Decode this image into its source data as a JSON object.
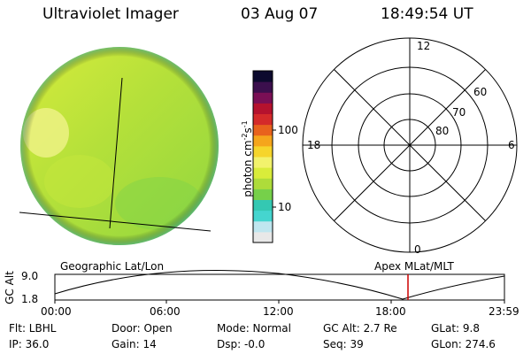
{
  "header": {
    "instrument": "Ultraviolet Imager",
    "date": "03 Aug 07",
    "time": "18:49:54 UT"
  },
  "colorbar": {
    "label": "photon cm^-2 s^-1",
    "ticks": [
      "100",
      "10"
    ],
    "scale": "log",
    "colors": [
      "#e8e8e8",
      "#bfe6ef",
      "#45d5cf",
      "#34c8b2",
      "#76d04a",
      "#aedc3a",
      "#d9ec3a",
      "#f2f26c",
      "#f6d52b",
      "#f5a51c",
      "#e8621d",
      "#d42a2a",
      "#b5122e",
      "#7a0f55",
      "#3b0f4d",
      "#0c0a2e"
    ]
  },
  "polar_plot": {
    "clock_labels": [
      "12",
      "18",
      "6",
      "0"
    ],
    "lat_labels": [
      "60",
      "70",
      "80"
    ]
  },
  "panels": {
    "left_caption": "Geographic Lat/Lon",
    "right_caption": "Apex MLat/MLT"
  },
  "altitude_plot": {
    "axis_label": "GC Alt",
    "y_ticks": [
      "9.0",
      "1.8"
    ],
    "x_ticks": [
      "00:00",
      "06:00",
      "12:00",
      "18:00",
      "23:59"
    ],
    "current_time_marker": "18:50",
    "marker_color": "#cc0000"
  },
  "info": {
    "flt": "Flt: LBHL",
    "door": "Door: Open",
    "mode": "Mode: Normal",
    "gc_alt": "GC Alt: 2.7 Re",
    "glat": "GLat:  9.8",
    "ip": "IP: 36.0",
    "gain": "Gain: 14",
    "dsp": "Dsp:  -0.0",
    "seq": "Seq: 39",
    "glon": "GLon: 274.6"
  }
}
